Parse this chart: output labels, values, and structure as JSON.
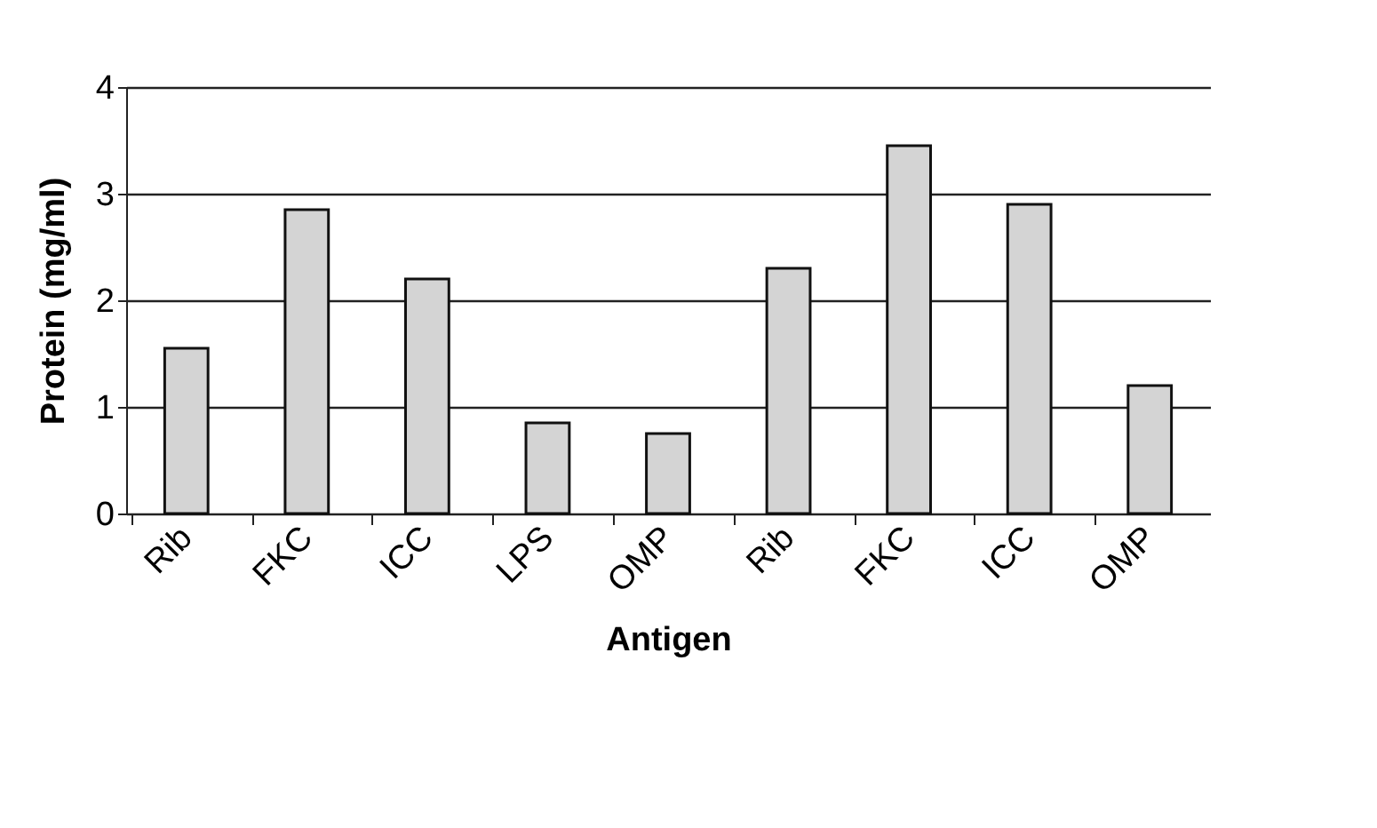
{
  "chart_data": {
    "type": "bar",
    "xlabel": "Antigen",
    "ylabel": "Protein (mg/ml)",
    "categories": [
      "Rib",
      "FKC",
      "ICC",
      "LPS",
      "OMP",
      "Rib",
      "FKC",
      "ICC",
      "OMP"
    ],
    "values": [
      1.55,
      2.85,
      2.2,
      0.85,
      0.75,
      2.3,
      3.45,
      2.9,
      1.2
    ],
    "color": "#d4d4d4",
    "ylim": [
      0,
      4
    ],
    "yticks": [
      0,
      1,
      2,
      3,
      4
    ],
    "grid": "y"
  }
}
